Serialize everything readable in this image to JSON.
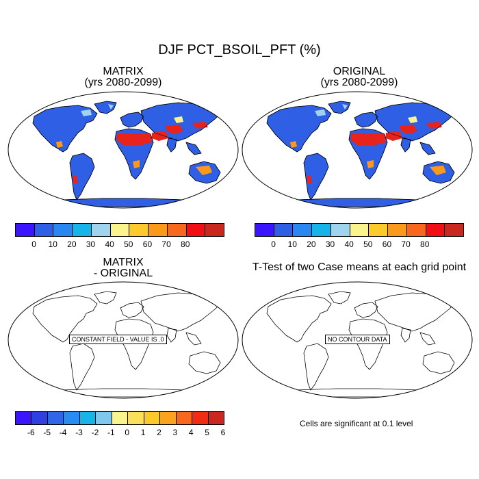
{
  "title": "DJF PCT_BSOIL_PFT (%)",
  "panels": [
    {
      "title_line1": "MATRIX",
      "title_line2": "(yrs 2080-2099)"
    },
    {
      "title_line1": "ORIGINAL",
      "title_line2": "(yrs 2080-2099)"
    },
    {
      "title_line1": "MATRIX",
      "title_line2": "- ORIGINAL",
      "message": "CONSTANT FIELD - VALUE IS .0"
    },
    {
      "title_line1": "T-Test of two Case means at each grid point",
      "message": "NO CONTOUR DATA",
      "note": "Cells are significant at 0.1 level"
    }
  ],
  "colorbar_abs": {
    "colors": [
      "#3b15ff",
      "#2f5fe5",
      "#2a86f0",
      "#17b4ea",
      "#9fd3ee",
      "#fbf38d",
      "#fccb2b",
      "#fb9a1a",
      "#f7681e",
      "#f00f14",
      "#c8281e"
    ],
    "labels": [
      "0",
      "10",
      "20",
      "30",
      "40",
      "50",
      "60",
      "70",
      "80"
    ]
  },
  "colorbar_diff": {
    "colors": [
      "#3b15ff",
      "#2f40e0",
      "#2f66e8",
      "#2a8cf0",
      "#17b4ea",
      "#7ec8ee",
      "#fbf38d",
      "#fbe05a",
      "#fccb2b",
      "#fba21e",
      "#f7681e",
      "#f02d14",
      "#c8281e"
    ],
    "labels": [
      "-6",
      "-5",
      "-4",
      "-3",
      "-2",
      "-1",
      "0",
      "1",
      "2",
      "3",
      "4",
      "5",
      "6"
    ]
  },
  "map_colors": {
    "ocean": "#ffffff",
    "land_low": "#2f5fe5",
    "desert": "#e8231b",
    "mid": "#fb9a1a",
    "light": "#9fd3ee",
    "yellow": "#fbf38d"
  }
}
